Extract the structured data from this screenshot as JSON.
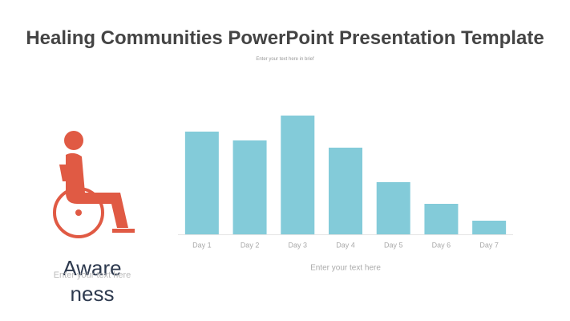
{
  "title": "Healing Communities PowerPoint Presentation Template",
  "subtitle": "Enter your text here in brief",
  "side_panel": {
    "heading": "Awareness",
    "text": "Enter your text here"
  },
  "chart_data": {
    "type": "bar",
    "categories": [
      "Day 1",
      "Day 2",
      "Day 3",
      "Day 4",
      "Day 5",
      "Day 6",
      "Day 7"
    ],
    "values": [
      128,
      117,
      148,
      108,
      65,
      38,
      17
    ],
    "color": "#83cbd9",
    "ylim": [
      0,
      150
    ],
    "caption": "Enter your text here"
  }
}
